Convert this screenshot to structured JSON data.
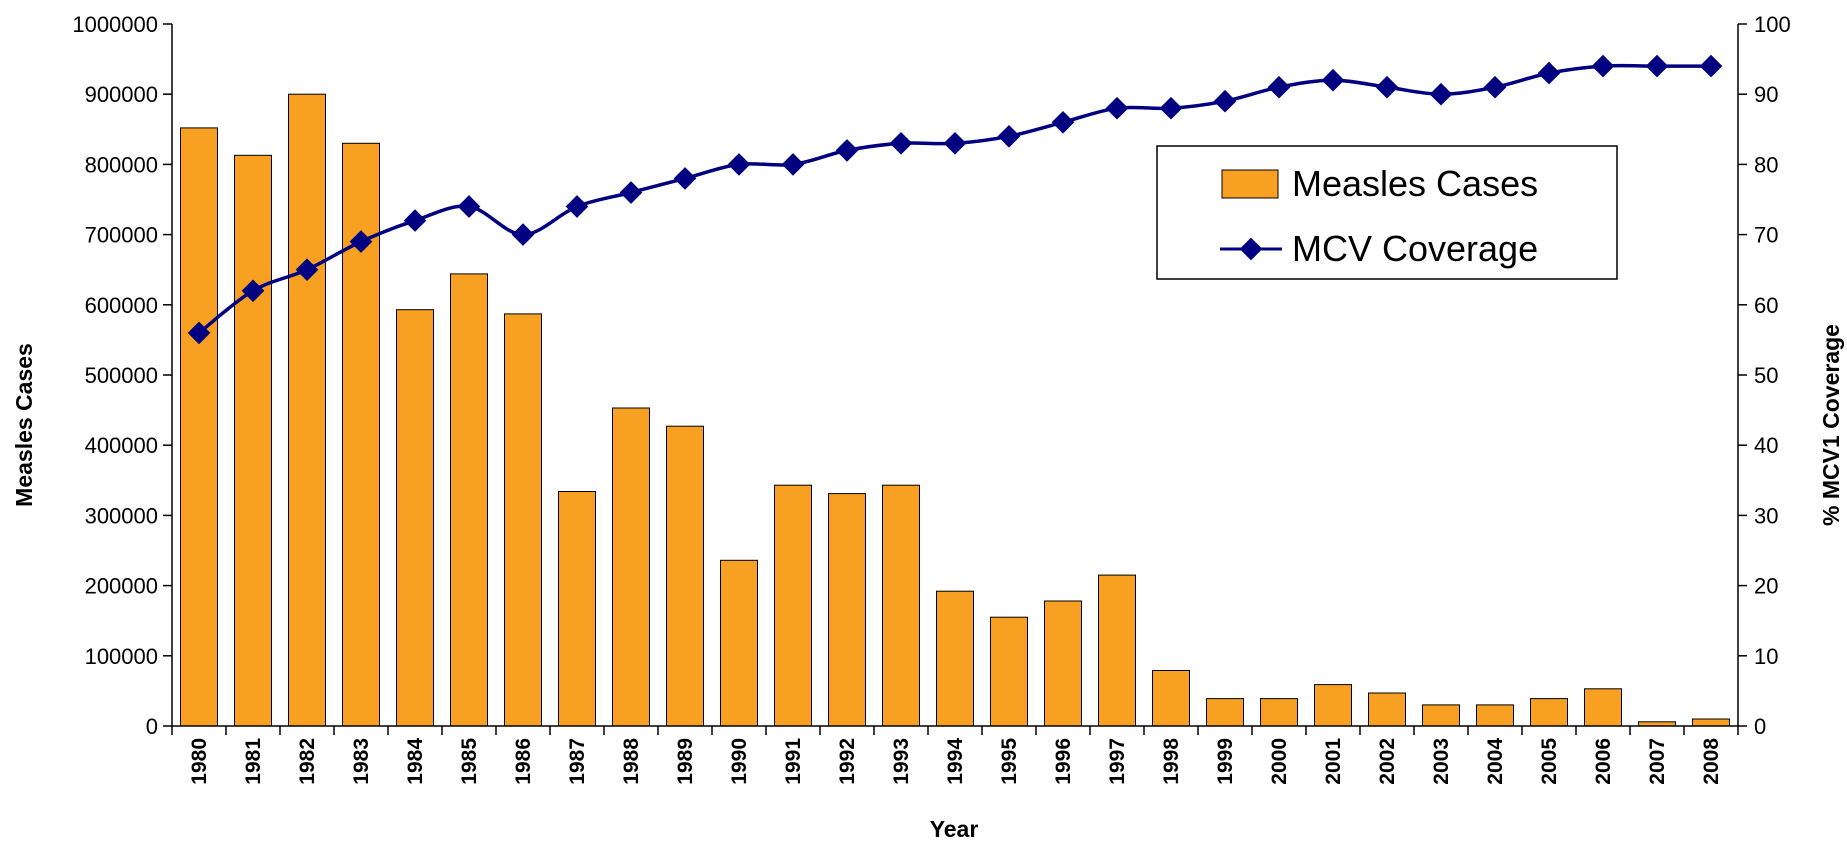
{
  "chart_data": {
    "type": "bar",
    "xlabel": "Year",
    "ylabel": "Measles Cases",
    "y2label": "% MCV1 Coverage",
    "ylim": [
      0,
      1000000
    ],
    "y2lim": [
      0,
      100
    ],
    "yticks": [
      "0",
      "100000",
      "200000",
      "300000",
      "400000",
      "500000",
      "600000",
      "700000",
      "800000",
      "900000",
      "1000000"
    ],
    "y2ticks": [
      "0",
      "10",
      "20",
      "30",
      "40",
      "50",
      "60",
      "70",
      "80",
      "90",
      "100"
    ],
    "categories": [
      "1980",
      "1981",
      "1982",
      "1983",
      "1984",
      "1985",
      "1986",
      "1987",
      "1988",
      "1989",
      "1990",
      "1991",
      "1992",
      "1993",
      "1994",
      "1995",
      "1996",
      "1997",
      "1998",
      "1999",
      "2000",
      "2001",
      "2002",
      "2003",
      "2004",
      "2005",
      "2006",
      "2007",
      "2008"
    ],
    "series": [
      {
        "name": "Measles Cases",
        "type": "bar",
        "axis": "left",
        "color": "#F7A021",
        "values": [
          852000,
          813000,
          900000,
          830000,
          593000,
          644000,
          587000,
          334000,
          453000,
          427000,
          236000,
          343000,
          331000,
          343000,
          192000,
          155000,
          178000,
          215000,
          79000,
          39000,
          39000,
          59000,
          47000,
          30000,
          30000,
          39000,
          53000,
          6000,
          10000
        ]
      },
      {
        "name": "MCV Coverage",
        "type": "line",
        "axis": "right",
        "color": "#000080",
        "values": [
          56,
          62,
          65,
          69,
          72,
          74,
          70,
          74,
          76,
          78,
          80,
          80,
          82,
          83,
          83,
          84,
          86,
          88,
          88,
          89,
          91,
          92,
          91,
          90,
          91,
          93,
          94,
          94,
          94
        ]
      }
    ],
    "legend": "top-right",
    "grid": false
  }
}
